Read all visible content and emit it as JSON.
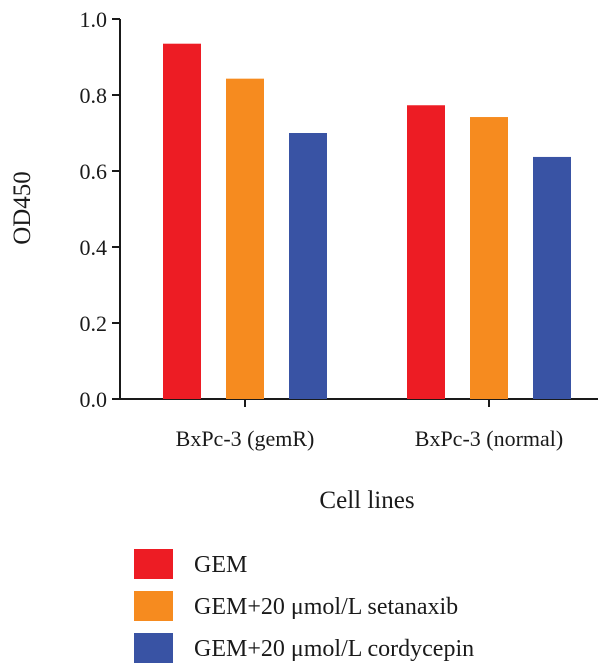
{
  "chart_data": {
    "type": "bar",
    "title": "",
    "xlabel": "Cell lines",
    "ylabel": "OD450",
    "ylim": [
      0,
      1.0
    ],
    "yticks": [
      "0.0",
      "0.2",
      "0.4",
      "0.6",
      "0.8",
      "1.0"
    ],
    "categories": [
      "BxPc-3 (gemR)",
      "BxPc-3 (normal)"
    ],
    "series": [
      {
        "name": "GEM",
        "color": "#ed1c24",
        "values": [
          0.935,
          0.773
        ]
      },
      {
        "name": "GEM+20 μmol/L setanaxib",
        "color": "#f68b1f",
        "values": [
          0.843,
          0.742
        ]
      },
      {
        "name": "GEM+20 μmol/L cordycepin",
        "color": "#3953a4",
        "values": [
          0.7,
          0.637
        ]
      }
    ],
    "grid": false,
    "legend_position": "bottom"
  }
}
